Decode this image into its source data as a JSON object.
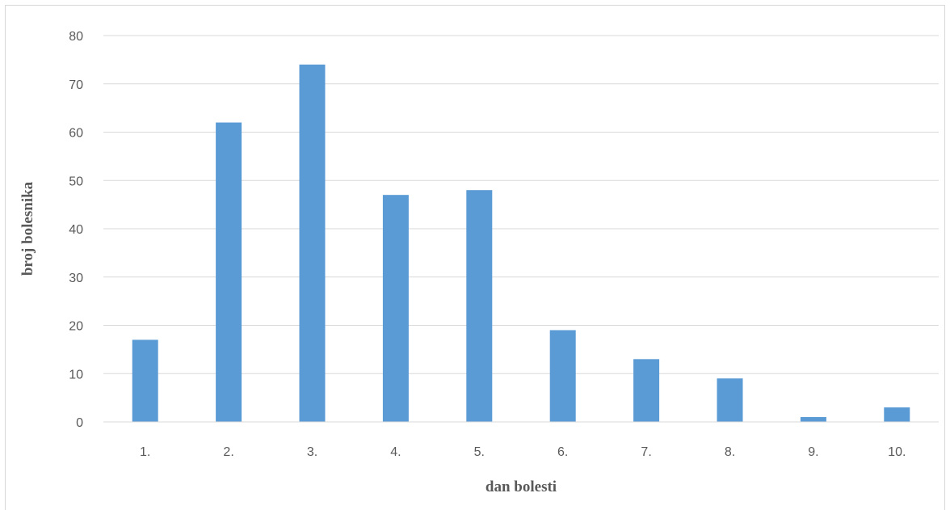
{
  "chart_data": {
    "type": "bar",
    "title": "",
    "xlabel": "dan bolesti",
    "ylabel": "broj bolesnika",
    "categories": [
      "1.",
      "2.",
      "3.",
      "4.",
      "5.",
      "6.",
      "7.",
      "8.",
      "9.",
      "10."
    ],
    "values": [
      17,
      62,
      74,
      47,
      48,
      19,
      13,
      9,
      1,
      3
    ],
    "ylim": [
      0,
      80
    ],
    "yticks": [
      "0",
      "10",
      "20",
      "30",
      "40",
      "50",
      "60",
      "70",
      "80"
    ],
    "grid": true,
    "legend": "none",
    "bar_color": "#5b9bd5"
  }
}
